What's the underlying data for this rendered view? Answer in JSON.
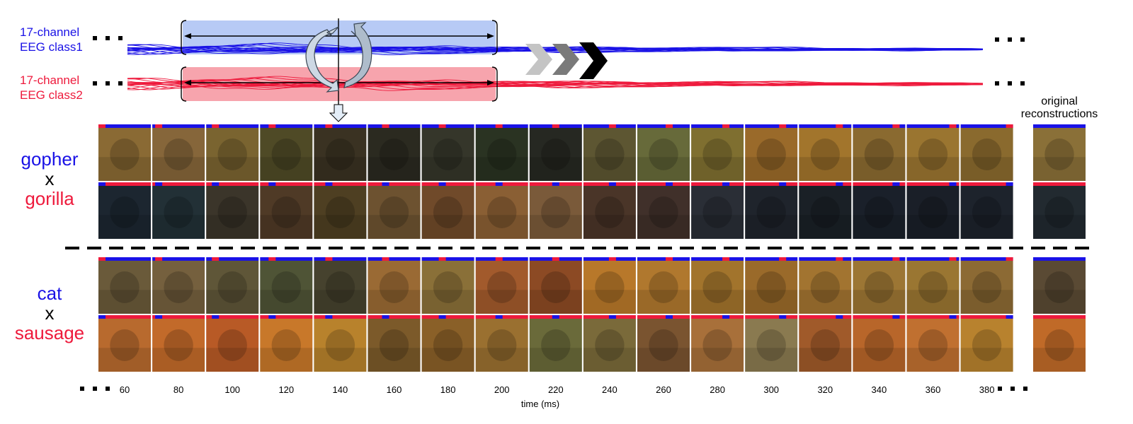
{
  "eeg": {
    "class1_label": [
      "17-channel",
      "EEG class1"
    ],
    "class2_label": [
      "17-channel",
      "EEG class2"
    ],
    "ellipsis": "■ ■ ■"
  },
  "header": {
    "original_label": [
      "original",
      "reconstructions"
    ]
  },
  "pairs": [
    {
      "word_a": "gopher",
      "connector": "x",
      "word_b": "gorilla",
      "row_a_tones": [
        "#8a6a34",
        "#86663a",
        "#7a6430",
        "#4f4a26",
        "#3a3222",
        "#2b2a20",
        "#35362a",
        "#2a3322",
        "#262822",
        "#5d5632",
        "#676a3a",
        "#7f6f30",
        "#9a6a2a",
        "#a2752c",
        "#8a6a30",
        "#9a7530",
        "#8a6a2e"
      ],
      "row_b_tones": [
        "#1c2630",
        "#223036",
        "#3b352a",
        "#4f3a26",
        "#4e3f22",
        "#6d5230",
        "#704a2a",
        "#8a5f34",
        "#7a5a3a",
        "#4a3528",
        "#40302a",
        "#2a2e36",
        "#1f242c",
        "#1a2026",
        "#1a202a",
        "#1a1f28",
        "#1d232c"
      ],
      "orig_a_tone": "#8a7038",
      "orig_b_tone": "#222a30"
    },
    {
      "word_a": "cat",
      "connector": "x",
      "word_b": "sausage",
      "row_a_tones": [
        "#6a5a3a",
        "#75603e",
        "#5f5638",
        "#4f5436",
        "#46422e",
        "#9a6a34",
        "#8a7038",
        "#a25a2c",
        "#8c4a24",
        "#b8782a",
        "#b0782e",
        "#a2742c",
        "#9a6a2a",
        "#a27430",
        "#9c7634",
        "#9a7632",
        "#8c6a34"
      ],
      "row_b_tones": [
        "#b86a2e",
        "#c26a2a",
        "#b85a26",
        "#c8782a",
        "#b8822c",
        "#7c5a2a",
        "#8a6028",
        "#9a7030",
        "#6a6a3a",
        "#7a6a3a",
        "#7a5430",
        "#a8703a",
        "#8a7a50",
        "#a05a2a",
        "#b8662a",
        "#c07030",
        "#b8822e"
      ],
      "orig_a_tone": "#5a4a34",
      "orig_b_tone": "#c06a28"
    }
  ],
  "axis": {
    "ticks": [
      "60",
      "80",
      "100",
      "120",
      "140",
      "160",
      "180",
      "200",
      "220",
      "240",
      "260",
      "280",
      "300",
      "320",
      "340",
      "360",
      "380"
    ],
    "xlabel": "time (ms)"
  },
  "colors": {
    "class1": "#1a12e6",
    "class2": "#ee1a3c",
    "window1_fill": "#b7caf5",
    "window2_fill": "#f7a4ad"
  }
}
